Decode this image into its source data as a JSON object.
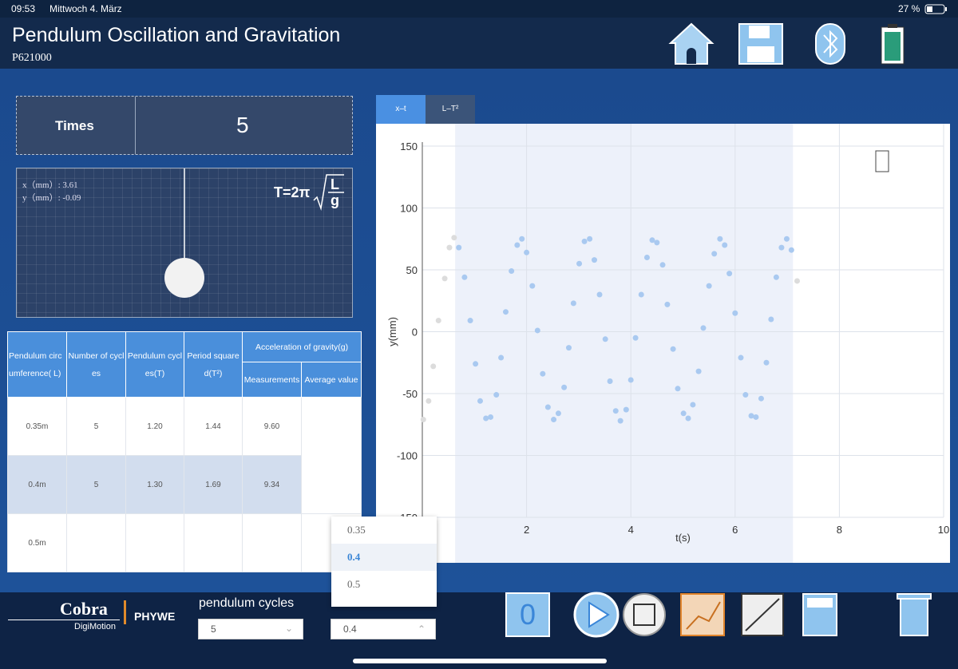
{
  "status_bar": {
    "time": "09:53",
    "date": "Mittwoch 4. März",
    "battery": "27 %"
  },
  "header": {
    "title": "Pendulum Oscillation and Gravitation",
    "code": "P621000"
  },
  "times": {
    "label": "Times",
    "value": "5"
  },
  "pendulum": {
    "x_readout": "x（mm）: 3.61",
    "y_readout": "y（mm）: -0.09",
    "formula": "T=2π",
    "numerator": "L",
    "denominator": "g"
  },
  "table": {
    "headers": [
      "Pendulum circumference( L)",
      "Number of cycles",
      "Pendulum cycles(T)",
      "Period squared(T²)",
      "Acceleration of gravity(g)"
    ],
    "subheaders": [
      "Measurements",
      "Average value"
    ],
    "rows": [
      [
        "0.35m",
        "5",
        "1.20",
        "1.44",
        "9.60"
      ],
      [
        "0.4m",
        "5",
        "1.30",
        "1.69",
        "9.34"
      ],
      [
        "0.5m"
      ]
    ]
  },
  "tabs": [
    "x–t",
    "L–T²"
  ],
  "chart_data": {
    "type": "scatter",
    "xlabel": "t(s)",
    "ylabel": "y(mm)",
    "xlim": [
      0,
      10
    ],
    "ylim": [
      -150,
      150
    ],
    "xticks": [
      2,
      4,
      6,
      8,
      10
    ],
    "yticks": [
      -150,
      -100,
      -50,
      0,
      50,
      100,
      150
    ],
    "grid": true,
    "selection": [
      0.63,
      7.11
    ],
    "series": [
      {
        "color": "#dcdcdc",
        "x": [
          0.02,
          0.12,
          0.21,
          0.31,
          0.43,
          0.52,
          0.61,
          7.19
        ],
        "values": [
          -71,
          -56,
          -28,
          9,
          43,
          68,
          76,
          41
        ]
      },
      {
        "color": "#a9c9f0",
        "x": [
          0.7,
          0.81,
          0.92,
          1.02,
          1.11,
          1.22,
          1.31,
          1.42,
          1.51,
          1.6,
          1.71,
          1.82,
          1.91,
          2.0,
          2.11,
          2.21,
          2.31,
          2.41,
          2.52,
          2.61,
          2.72,
          2.81,
          2.9,
          3.01,
          3.11,
          3.21,
          3.3,
          3.4,
          3.51,
          3.6,
          3.71,
          3.8,
          3.91,
          4.0,
          4.09,
          4.2,
          4.31,
          4.41,
          4.5,
          4.61,
          4.7,
          4.81,
          4.9,
          5.01,
          5.1,
          5.19,
          5.3,
          5.39,
          5.5,
          5.6,
          5.71,
          5.8,
          5.89,
          6.0,
          6.11,
          6.2,
          6.31,
          6.4,
          6.5,
          6.6,
          6.69,
          6.79,
          6.89,
          6.99,
          7.08
        ],
        "values": [
          68,
          44,
          9,
          -26,
          -56,
          -70,
          -69,
          -51,
          -21,
          16,
          49,
          70,
          75,
          64,
          37,
          1,
          -34,
          -61,
          -71,
          -66,
          -45,
          -13,
          23,
          55,
          73,
          75,
          58,
          30,
          -6,
          -40,
          -64,
          -72,
          -63,
          -39,
          -5,
          30,
          60,
          74,
          72,
          54,
          22,
          -14,
          -46,
          -66,
          -70,
          -59,
          -32,
          3,
          37,
          63,
          75,
          70,
          47,
          15,
          -21,
          -51,
          -68,
          -69,
          -54,
          -25,
          10,
          44,
          68,
          75,
          66
        ]
      }
    ]
  },
  "dropdown": {
    "options": [
      "0.35",
      "0.4",
      "0.5"
    ],
    "selected": 1
  },
  "controls": {
    "cycles_label": "pendulum cycles",
    "cycles_value": "5",
    "circumference_value": "0.4",
    "counter": "0"
  },
  "logo": {
    "brand": "Cobra",
    "sub": "DigiMotion",
    "maker": "PHYWE"
  }
}
